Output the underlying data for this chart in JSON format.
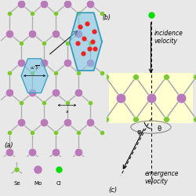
{
  "bg_color": "#e8e8e8",
  "panel_bg": "#ffffff",
  "se_color": "#7dc832",
  "mo_color": "#b87ab8",
  "cl_color": "#00dd00",
  "bond_color": "#aaaaaa",
  "hexagon_fill": "#7cc8e8",
  "hexagon_edge": "#3399bb",
  "cl_scatter_color": "#ee2222",
  "title_a": "(a)",
  "title_b": "(b)",
  "title_c": "(c)",
  "label_se": "Se",
  "label_mo": "Mo",
  "label_cl": "Cl",
  "label_incidence": "incidence\nvelocity",
  "label_emergence": "emergence\nvelocity",
  "label_theta": "θ",
  "label_phi": "φ"
}
